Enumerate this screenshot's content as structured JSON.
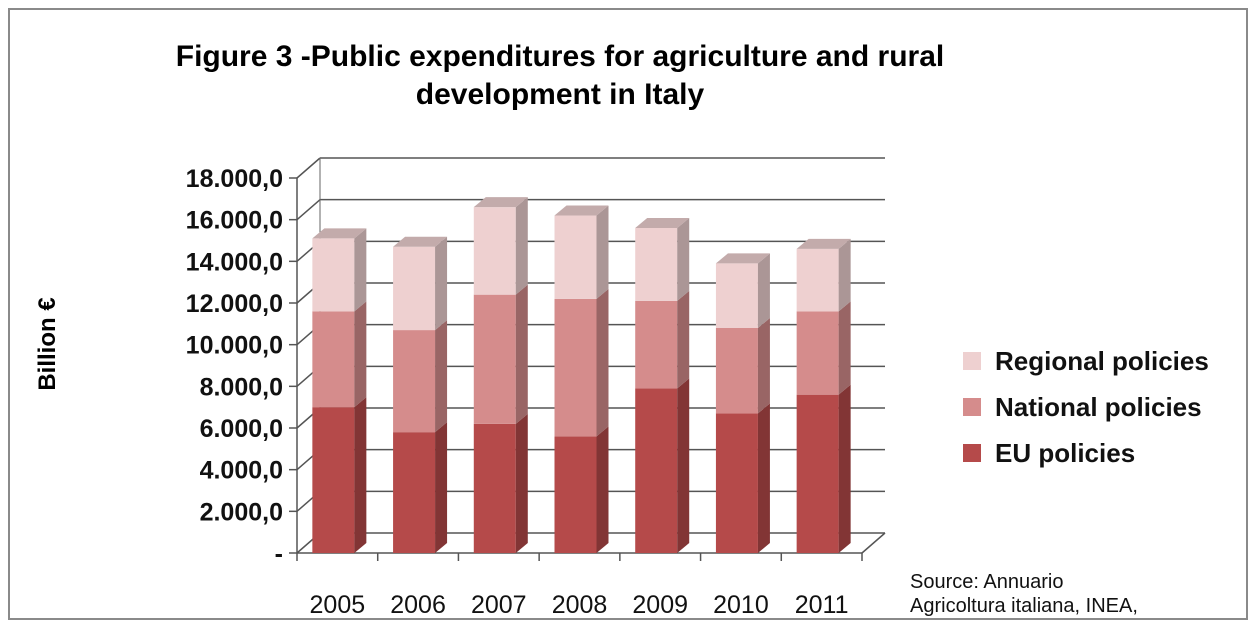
{
  "chart_data": {
    "type": "bar",
    "stacked": true,
    "three_d": true,
    "title": "Figure 3 -Public expenditures for agriculture and rural development in Italy",
    "xlabel": "",
    "ylabel": "Billion €",
    "ylim": [
      0,
      18000
    ],
    "yticks": [
      "-",
      "2.000,0",
      "4.000,0",
      "6.000,0",
      "8.000,0",
      "10.000,0",
      "12.000,0",
      "14.000,0",
      "16.000,0",
      "18.000,0"
    ],
    "ytick_values": [
      0,
      2000,
      4000,
      6000,
      8000,
      10000,
      12000,
      14000,
      16000,
      18000
    ],
    "categories": [
      "2005",
      "2006",
      "2007",
      "2008",
      "2009",
      "2010",
      "2011"
    ],
    "series": [
      {
        "name": "EU policies",
        "color": "#b54a4a",
        "values": [
          7000,
          5800,
          6200,
          5600,
          7900,
          6700,
          7600
        ]
      },
      {
        "name": "National policies",
        "color": "#d58c8c",
        "values": [
          4600,
          4900,
          6200,
          6600,
          4200,
          4100,
          4000
        ]
      },
      {
        "name": "Regional policies",
        "color": "#eed0d0",
        "values": [
          3500,
          4000,
          4200,
          4000,
          3500,
          3100,
          3000
        ]
      }
    ],
    "legend_position": "right",
    "grid": true
  },
  "source_lines": [
    "Source: Annuario",
    "Agricoltura italiana, INEA,"
  ]
}
